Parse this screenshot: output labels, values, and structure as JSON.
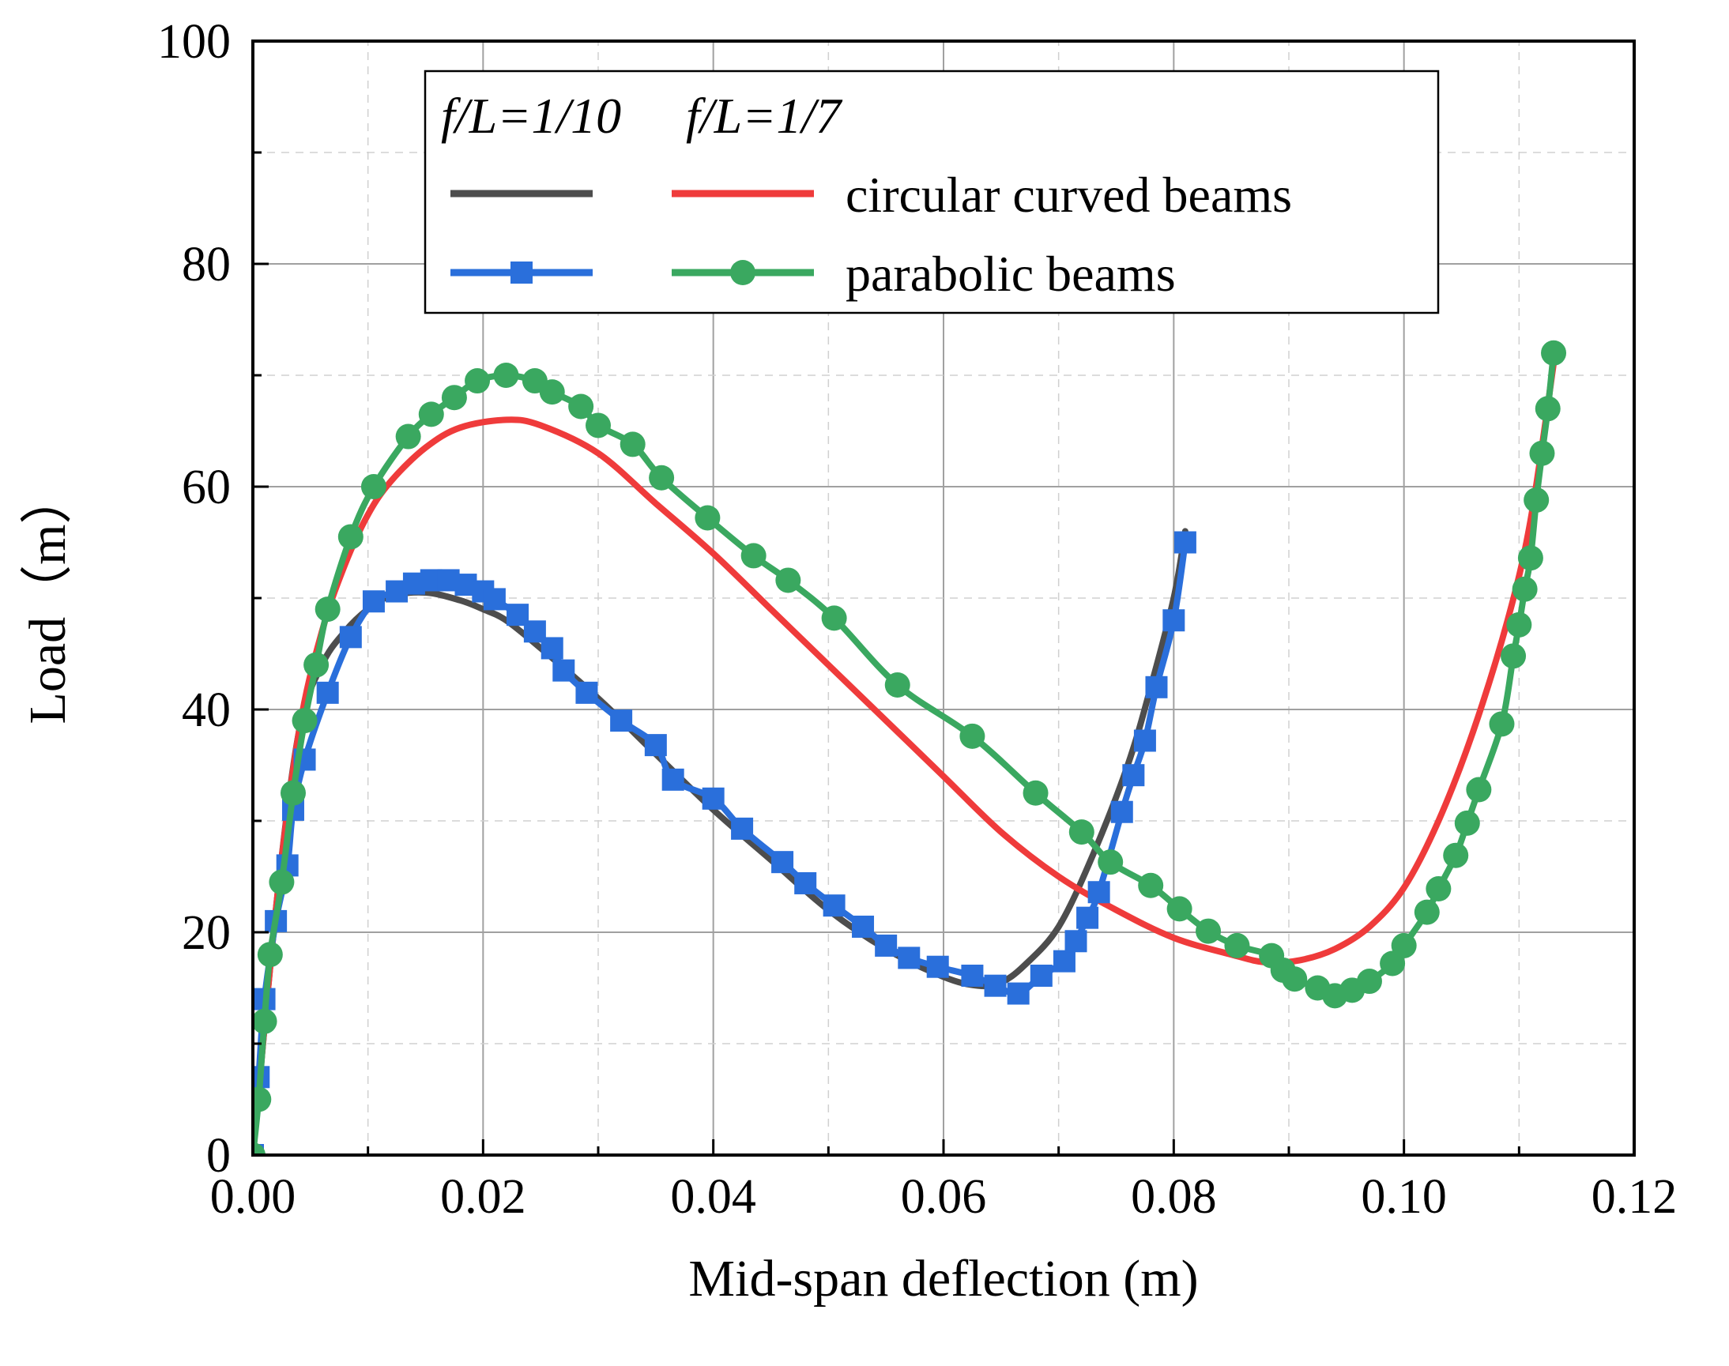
{
  "chart_data": {
    "type": "line",
    "xlabel": "Mid-span deflection (m)",
    "ylabel": "Load（m）",
    "xlim": [
      0,
      0.12
    ],
    "ylim": [
      0,
      100
    ],
    "x_ticks": [
      0.0,
      0.02,
      0.04,
      0.06,
      0.08,
      0.1,
      0.12
    ],
    "x_tick_labels": [
      "0.00",
      "0.02",
      "0.04",
      "0.06",
      "0.08",
      "0.10",
      "0.12"
    ],
    "y_ticks": [
      0,
      20,
      40,
      60,
      80,
      100
    ],
    "y_tick_labels": [
      "0",
      "20",
      "40",
      "60",
      "80",
      "100"
    ],
    "grid": true,
    "legend": {
      "position": "top-left",
      "header_left": "f/L=1/10",
      "header_right": "f/L=1/7",
      "rows": [
        "circular curved beams",
        "parabolic beams"
      ]
    },
    "series": [
      {
        "name": "circular curved beams, f/L=1/10",
        "color": "#4d4d4d",
        "marker": "none",
        "points": [
          [
            0.0,
            0
          ],
          [
            0.002,
            22
          ],
          [
            0.004,
            38
          ],
          [
            0.006,
            44
          ],
          [
            0.008,
            47
          ],
          [
            0.01,
            49
          ],
          [
            0.012,
            50.2
          ],
          [
            0.015,
            50.5
          ],
          [
            0.018,
            49.8
          ],
          [
            0.02,
            49
          ],
          [
            0.022,
            48
          ],
          [
            0.025,
            45.5
          ],
          [
            0.03,
            41
          ],
          [
            0.035,
            36
          ],
          [
            0.04,
            31
          ],
          [
            0.045,
            26.5
          ],
          [
            0.05,
            22
          ],
          [
            0.055,
            18.5
          ],
          [
            0.06,
            16
          ],
          [
            0.063,
            15.2
          ],
          [
            0.065,
            15.5
          ],
          [
            0.067,
            17
          ],
          [
            0.07,
            20.5
          ],
          [
            0.073,
            27
          ],
          [
            0.076,
            35
          ],
          [
            0.078,
            42
          ],
          [
            0.08,
            50
          ],
          [
            0.081,
            56
          ]
        ]
      },
      {
        "name": "circular curved beams, f/L=1/7",
        "color": "#ef3b3b",
        "marker": "none",
        "points": [
          [
            0.0,
            0
          ],
          [
            0.002,
            22
          ],
          [
            0.004,
            38
          ],
          [
            0.006,
            47
          ],
          [
            0.008,
            53
          ],
          [
            0.01,
            57.5
          ],
          [
            0.012,
            60.5
          ],
          [
            0.015,
            63.5
          ],
          [
            0.018,
            65.3
          ],
          [
            0.022,
            66
          ],
          [
            0.025,
            65.5
          ],
          [
            0.03,
            63
          ],
          [
            0.035,
            58.5
          ],
          [
            0.04,
            54
          ],
          [
            0.045,
            49
          ],
          [
            0.05,
            44
          ],
          [
            0.055,
            39
          ],
          [
            0.06,
            34
          ],
          [
            0.065,
            29
          ],
          [
            0.07,
            25
          ],
          [
            0.075,
            22
          ],
          [
            0.08,
            19.5
          ],
          [
            0.085,
            18
          ],
          [
            0.088,
            17.3
          ],
          [
            0.091,
            17.5
          ],
          [
            0.094,
            18.5
          ],
          [
            0.097,
            20.5
          ],
          [
            0.1,
            24
          ],
          [
            0.103,
            30
          ],
          [
            0.106,
            38
          ],
          [
            0.109,
            48
          ],
          [
            0.111,
            57
          ],
          [
            0.113,
            71
          ]
        ]
      },
      {
        "name": "parabolic beams, f/L=1/10",
        "color": "#2a6fdb",
        "marker": "square",
        "points": [
          [
            0.0,
            0
          ],
          [
            0.0005,
            7
          ],
          [
            0.001,
            14
          ],
          [
            0.002,
            21
          ],
          [
            0.003,
            26
          ],
          [
            0.0035,
            31
          ],
          [
            0.0045,
            35.5
          ],
          [
            0.0065,
            41.5
          ],
          [
            0.0085,
            46.5
          ],
          [
            0.0105,
            49.7
          ],
          [
            0.0125,
            50.6
          ],
          [
            0.014,
            51.3
          ],
          [
            0.0155,
            51.6
          ],
          [
            0.017,
            51.6
          ],
          [
            0.0185,
            51.2
          ],
          [
            0.02,
            50.6
          ],
          [
            0.021,
            49.9
          ],
          [
            0.023,
            48.5
          ],
          [
            0.0245,
            47
          ],
          [
            0.026,
            45.5
          ],
          [
            0.027,
            43.5
          ],
          [
            0.029,
            41.5
          ],
          [
            0.032,
            39
          ],
          [
            0.035,
            36.8
          ],
          [
            0.0365,
            33.7
          ],
          [
            0.04,
            32
          ],
          [
            0.0425,
            29.3
          ],
          [
            0.046,
            26.3
          ],
          [
            0.048,
            24.4
          ],
          [
            0.0505,
            22.4
          ],
          [
            0.053,
            20.5
          ],
          [
            0.055,
            18.8
          ],
          [
            0.057,
            17.7
          ],
          [
            0.0595,
            16.9
          ],
          [
            0.0625,
            16.1
          ],
          [
            0.0645,
            15.2
          ],
          [
            0.0665,
            14.5
          ],
          [
            0.0685,
            16.1
          ],
          [
            0.0705,
            17.4
          ],
          [
            0.0715,
            19.2
          ],
          [
            0.0725,
            21.3
          ],
          [
            0.0735,
            23.6
          ],
          [
            0.0755,
            30.8
          ],
          [
            0.0765,
            34.1
          ],
          [
            0.0775,
            37.2
          ],
          [
            0.0785,
            42
          ],
          [
            0.08,
            48
          ],
          [
            0.081,
            55
          ]
        ]
      },
      {
        "name": "parabolic beams, f/L=1/7",
        "color": "#3aa860",
        "marker": "circle",
        "points": [
          [
            0.0,
            0
          ],
          [
            0.0005,
            5
          ],
          [
            0.001,
            12
          ],
          [
            0.0015,
            18
          ],
          [
            0.0025,
            24.5
          ],
          [
            0.0035,
            32.5
          ],
          [
            0.0045,
            39
          ],
          [
            0.0055,
            44
          ],
          [
            0.0065,
            49
          ],
          [
            0.0085,
            55.5
          ],
          [
            0.0105,
            60
          ],
          [
            0.0135,
            64.5
          ],
          [
            0.0155,
            66.5
          ],
          [
            0.0175,
            68
          ],
          [
            0.0195,
            69.5
          ],
          [
            0.022,
            70
          ],
          [
            0.0245,
            69.5
          ],
          [
            0.026,
            68.5
          ],
          [
            0.0285,
            67.2
          ],
          [
            0.03,
            65.5
          ],
          [
            0.033,
            63.8
          ],
          [
            0.0355,
            60.8
          ],
          [
            0.0395,
            57.2
          ],
          [
            0.0435,
            53.8
          ],
          [
            0.0465,
            51.6
          ],
          [
            0.0505,
            48.2
          ],
          [
            0.056,
            42.2
          ],
          [
            0.0625,
            37.6
          ],
          [
            0.068,
            32.5
          ],
          [
            0.072,
            29
          ],
          [
            0.0745,
            26.3
          ],
          [
            0.078,
            24.2
          ],
          [
            0.0805,
            22.1
          ],
          [
            0.083,
            20.1
          ],
          [
            0.0855,
            18.8
          ],
          [
            0.0885,
            17.9
          ],
          [
            0.0895,
            16.6
          ],
          [
            0.0905,
            15.8
          ],
          [
            0.0925,
            15
          ],
          [
            0.094,
            14.3
          ],
          [
            0.0955,
            14.8
          ],
          [
            0.097,
            15.6
          ],
          [
            0.099,
            17.2
          ],
          [
            0.1,
            18.8
          ],
          [
            0.102,
            21.8
          ],
          [
            0.103,
            23.9
          ],
          [
            0.1045,
            26.9
          ],
          [
            0.1055,
            29.8
          ],
          [
            0.1065,
            32.8
          ],
          [
            0.1085,
            38.7
          ],
          [
            0.1095,
            44.8
          ],
          [
            0.11,
            47.6
          ],
          [
            0.1105,
            50.8
          ],
          [
            0.111,
            53.6
          ],
          [
            0.1115,
            58.8
          ],
          [
            0.112,
            63
          ],
          [
            0.1125,
            67
          ],
          [
            0.113,
            72
          ]
        ]
      }
    ]
  },
  "colors": {
    "frame": "#000000",
    "grid": "#a0a0a0",
    "grid_minor": "#d0d0d0",
    "legend_dark_line": "#4d4d4d",
    "legend_red_line": "#ef3b3b",
    "legend_blue_line": "#2a6fdb",
    "legend_green_line": "#3aa860"
  }
}
